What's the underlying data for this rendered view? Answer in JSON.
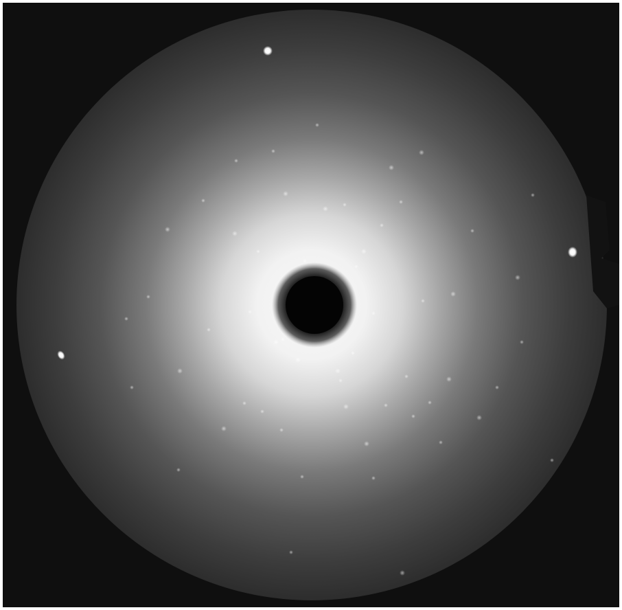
{
  "image": {
    "kind": "diffraction-pattern",
    "palette": {
      "background": "#0f0f0f",
      "outer_ring": "#2a2a2a",
      "halo_bright": "#f8f8f8",
      "halo_mid": "#b8b8b8",
      "halo_dim": "#5a5a5a",
      "beam_stop": "#040404",
      "reflection": "#ffffff"
    },
    "bright_reflection_count": 3,
    "faint_reflections_visible": true
  }
}
